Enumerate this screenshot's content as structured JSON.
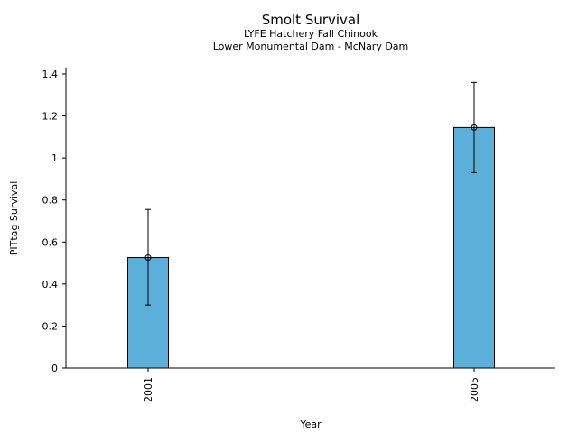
{
  "chart_data": {
    "type": "bar",
    "title": "Smolt Survival",
    "subtitle_lines": [
      "LYFE Hatchery Fall Chinook",
      "Lower Monumental Dam - McNary Dam"
    ],
    "xlabel": "Year",
    "ylabel": "PITtag Survival",
    "categories": [
      "2001",
      "2005"
    ],
    "values": [
      0.526,
      1.145
    ],
    "error_low": [
      0.3,
      0.93
    ],
    "error_high": [
      0.755,
      1.36
    ],
    "ylim": [
      0,
      1.4
    ],
    "yticks": [
      {
        "value": 0,
        "label": "0"
      },
      {
        "value": 0.2,
        "label": "0.2"
      },
      {
        "value": 0.4,
        "label": "0.4"
      },
      {
        "value": 0.6,
        "label": "0.6"
      },
      {
        "value": 0.8,
        "label": "0.8"
      },
      {
        "value": 1.0,
        "label": "1"
      },
      {
        "value": 1.2,
        "label": "1.2"
      },
      {
        "value": 1.4,
        "label": "1.4"
      }
    ],
    "bar_color": "#5bafd8",
    "grid": false
  }
}
